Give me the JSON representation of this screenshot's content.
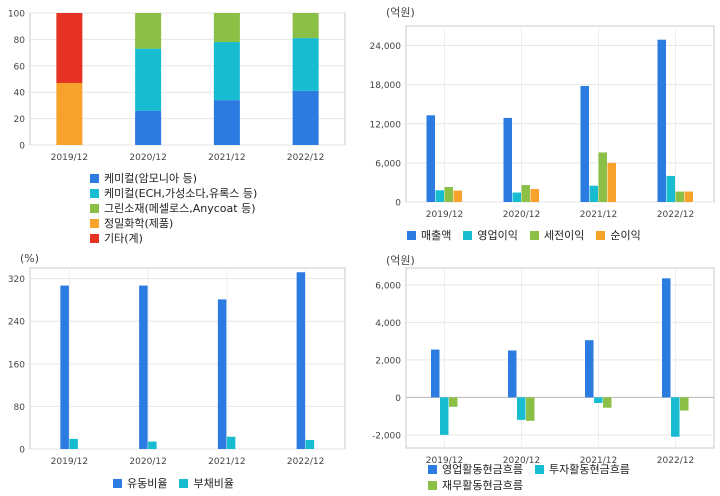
{
  "chart_data": [
    {
      "type": "bar",
      "stacked": true,
      "categories": [
        "2019/12",
        "2020/12",
        "2021/12",
        "2022/12"
      ],
      "ylim": [
        0,
        100
      ],
      "yticks": [
        0,
        20,
        40,
        60,
        80,
        100
      ],
      "series": [
        {
          "name": "케미컬(암모니아 등)",
          "color": "#2b7be0",
          "values": [
            0,
            26,
            34,
            41
          ]
        },
        {
          "name": "케미컬(ECH,가성소다,유록스 등)",
          "color": "#17bcd0",
          "values": [
            0,
            47,
            44,
            40
          ]
        },
        {
          "name": "그린소재(메셀로스,Anycoat 등)",
          "color": "#8bbf45",
          "values": [
            0,
            27,
            22,
            19
          ]
        },
        {
          "name": "정밀화학(제품)",
          "color": "#f7a22a",
          "values": [
            47,
            0,
            0,
            0
          ]
        },
        {
          "name": "기타(계)",
          "color": "#e63223",
          "values": [
            53,
            0,
            0,
            0
          ]
        }
      ]
    },
    {
      "type": "bar",
      "unit": "(억원)",
      "categories": [
        "2019/12",
        "2020/12",
        "2021/12",
        "2022/12"
      ],
      "ylim": [
        0,
        27000
      ],
      "yticks": [
        0,
        6000,
        12000,
        18000,
        24000
      ],
      "ytick_labels": [
        "0",
        "6,000",
        "12,000",
        "18,000",
        "24,000"
      ],
      "series": [
        {
          "name": "매출액",
          "color": "#2b7be0",
          "values": [
            13300,
            12900,
            17800,
            24900
          ]
        },
        {
          "name": "영업이익",
          "color": "#17bcd0",
          "values": [
            1800,
            1450,
            2500,
            4000
          ]
        },
        {
          "name": "세전이익",
          "color": "#8bbf45",
          "values": [
            2300,
            2600,
            7600,
            1600
          ]
        },
        {
          "name": "순이익",
          "color": "#f7a22a",
          "values": [
            1750,
            2000,
            6000,
            1600
          ]
        }
      ]
    },
    {
      "type": "bar",
      "unit": "(%)",
      "categories": [
        "2019/12",
        "2020/12",
        "2021/12",
        "2022/12"
      ],
      "ylim": [
        0,
        340
      ],
      "yticks": [
        0,
        80,
        160,
        240,
        320
      ],
      "ytick_labels": [
        "0",
        "80",
        "160",
        "240",
        "320"
      ],
      "series": [
        {
          "name": "유동비율",
          "color": "#2b7be0",
          "values": [
            307,
            307,
            281,
            332
          ]
        },
        {
          "name": "부채비율",
          "color": "#17bcd0",
          "values": [
            19,
            14,
            23,
            17
          ]
        }
      ]
    },
    {
      "type": "bar",
      "unit": "(억원)",
      "categories": [
        "2019/12",
        "2020/12",
        "2021/12",
        "2022/12"
      ],
      "ylim": [
        -2700,
        6900
      ],
      "yticks": [
        -2000,
        0,
        2000,
        4000,
        6000
      ],
      "ytick_labels": [
        "-2,000",
        "0",
        "2,000",
        "4,000",
        "6,000"
      ],
      "series": [
        {
          "name": "영업활동현금흐름",
          "color": "#2b7be0",
          "values": [
            2550,
            2500,
            3050,
            6350
          ]
        },
        {
          "name": "투자활동현금흐름",
          "color": "#17bcd0",
          "values": [
            -2000,
            -1200,
            -300,
            -2100
          ]
        },
        {
          "name": "재무활동현금흐름",
          "color": "#8bbf45",
          "values": [
            -500,
            -1250,
            -550,
            -700
          ]
        }
      ]
    }
  ]
}
